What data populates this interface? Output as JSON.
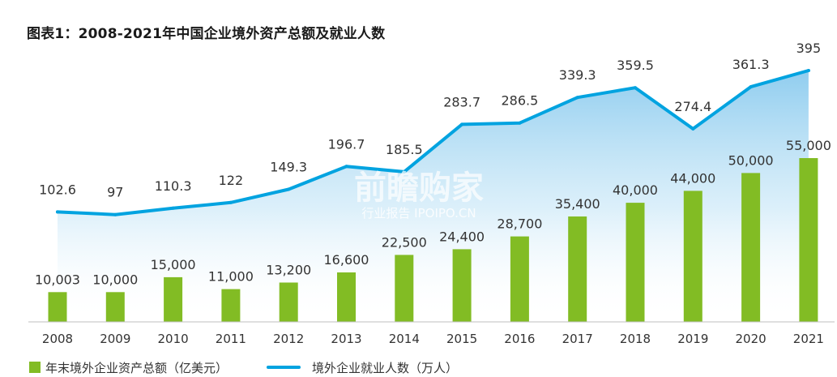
{
  "title": "图表1：2008-2021年中国企业境外资产总额及就业人数",
  "watermark": {
    "main": "前瞻购家",
    "sub": "行业报告 IPOIPO.CN"
  },
  "colors": {
    "bar": "#82BC24",
    "line": "#00A3E0",
    "area_top": "#7CC4EC",
    "axis": "#BFBFBF"
  },
  "chart_data": {
    "type": "bar+line",
    "categories": [
      "2008",
      "2009",
      "2010",
      "2011",
      "2012",
      "2013",
      "2014",
      "2015",
      "2016",
      "2017",
      "2018",
      "2019",
      "2020",
      "2021"
    ],
    "series": [
      {
        "name": "年末境外企业资产总额（亿美元）",
        "type": "bar",
        "values": [
          10003,
          10000,
          15000,
          11000,
          13200,
          16600,
          22500,
          24400,
          28700,
          35400,
          40000,
          44000,
          50000,
          55000
        ],
        "labels": [
          "10,003",
          "10,000",
          "15,000",
          "11,000",
          "13,200",
          "16,600",
          "22,500",
          "24,400",
          "28,700",
          "35,400",
          "40,000",
          "44,000",
          "50,000",
          "55,000"
        ]
      },
      {
        "name": "境外企业就业人数（万人）",
        "type": "line",
        "values": [
          102.6,
          97,
          110.3,
          122,
          149.3,
          196.7,
          185.5,
          283.7,
          286.5,
          339.3,
          359.5,
          274.4,
          361.3,
          395
        ],
        "labels": [
          "102.6",
          "97",
          "110.3",
          "122",
          "149.3",
          "196.7",
          "185.5",
          "283.7",
          "286.5",
          "339.3",
          "359.5",
          "274.4",
          "361.3",
          "395"
        ]
      }
    ],
    "legend_position": "bottom-left",
    "grid": false
  }
}
